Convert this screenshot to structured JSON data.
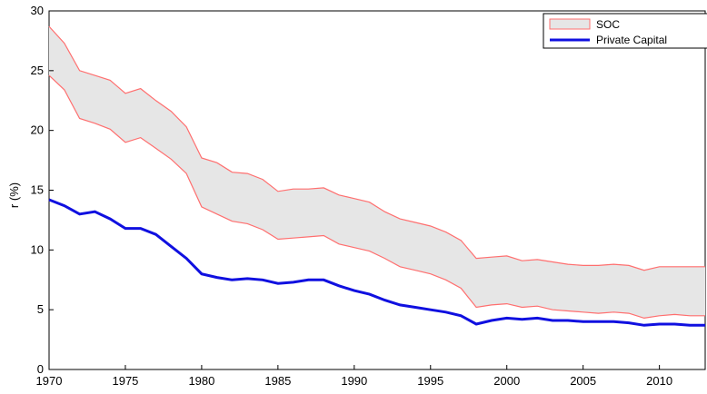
{
  "chart_data": {
    "type": "area",
    "ylabel": "r (%)",
    "xlabel": "",
    "title": "",
    "xlim": [
      1970,
      2013
    ],
    "ylim": [
      0,
      30
    ],
    "grid": false,
    "legend_position": "top-right",
    "x_ticks": [
      "1970",
      "1975",
      "1980",
      "1985",
      "1990",
      "1995",
      "2000",
      "2005",
      "2010"
    ],
    "y_ticks": [
      "0",
      "5",
      "10",
      "15",
      "20",
      "25",
      "30"
    ],
    "x": [
      1970,
      1971,
      1972,
      1973,
      1974,
      1975,
      1976,
      1977,
      1978,
      1979,
      1980,
      1981,
      1982,
      1983,
      1984,
      1985,
      1986,
      1987,
      1988,
      1989,
      1990,
      1991,
      1992,
      1993,
      1994,
      1995,
      1996,
      1997,
      1998,
      1999,
      2000,
      2001,
      2002,
      2003,
      2004,
      2005,
      2006,
      2007,
      2008,
      2009,
      2010,
      2011,
      2012,
      2013
    ],
    "series": [
      {
        "name": "SOC",
        "kind": "band",
        "upper": [
          28.7,
          27.3,
          25.0,
          24.6,
          24.2,
          23.1,
          23.5,
          22.5,
          21.6,
          20.3,
          17.7,
          17.3,
          16.5,
          16.4,
          15.9,
          14.9,
          15.1,
          15.1,
          15.2,
          14.6,
          14.3,
          14.0,
          13.2,
          12.6,
          12.3,
          12.0,
          11.5,
          10.8,
          9.3,
          9.4,
          9.5,
          9.1,
          9.2,
          9.0,
          8.8,
          8.7,
          8.7,
          8.8,
          8.7,
          8.3,
          8.6,
          8.6,
          8.6,
          8.6
        ],
        "lower": [
          24.6,
          23.4,
          21.0,
          20.6,
          20.1,
          19.0,
          19.4,
          18.5,
          17.6,
          16.4,
          13.6,
          13.0,
          12.4,
          12.2,
          11.7,
          10.9,
          11.0,
          11.1,
          11.2,
          10.5,
          10.2,
          9.9,
          9.3,
          8.6,
          8.3,
          8.0,
          7.5,
          6.8,
          5.2,
          5.4,
          5.5,
          5.2,
          5.3,
          5.0,
          4.9,
          4.8,
          4.7,
          4.8,
          4.7,
          4.3,
          4.5,
          4.6,
          4.5,
          4.5
        ],
        "fill_color": "#e6e6e6",
        "line_color": "#ff6f6f"
      },
      {
        "name": "Private Capital",
        "kind": "line",
        "values": [
          14.2,
          13.7,
          13.0,
          13.2,
          12.6,
          11.8,
          11.8,
          11.3,
          10.3,
          9.3,
          8.0,
          7.7,
          7.5,
          7.6,
          7.5,
          7.2,
          7.3,
          7.5,
          7.5,
          7.0,
          6.6,
          6.3,
          5.8,
          5.4,
          5.2,
          5.0,
          4.8,
          4.5,
          3.8,
          4.1,
          4.3,
          4.2,
          4.3,
          4.1,
          4.1,
          4.0,
          4.0,
          4.0,
          3.9,
          3.7,
          3.8,
          3.8,
          3.7,
          3.7
        ],
        "color": "#1010e0"
      }
    ]
  }
}
